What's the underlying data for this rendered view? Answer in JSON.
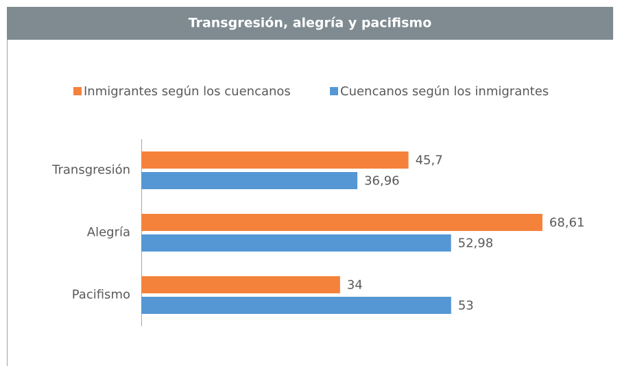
{
  "chart_data": {
    "type": "barh",
    "title": "Transgresión, alegría y pacifismo",
    "categories": [
      "Transgresión",
      "Alegría",
      "Pacifismo"
    ],
    "series": [
      {
        "name": "Inmigrantes según los cuencanos",
        "color": "#f5823b",
        "values": [
          45.7,
          68.61,
          34
        ],
        "value_labels": [
          "45,7",
          "68,61",
          "34"
        ]
      },
      {
        "name": "Cuencanos según los inmigrantes",
        "color": "#5597d4",
        "values": [
          36.96,
          52.98,
          53
        ],
        "value_labels": [
          "36,96",
          "52,98",
          "53"
        ]
      }
    ],
    "xlim": [
      0,
      80
    ],
    "legend": "top"
  }
}
